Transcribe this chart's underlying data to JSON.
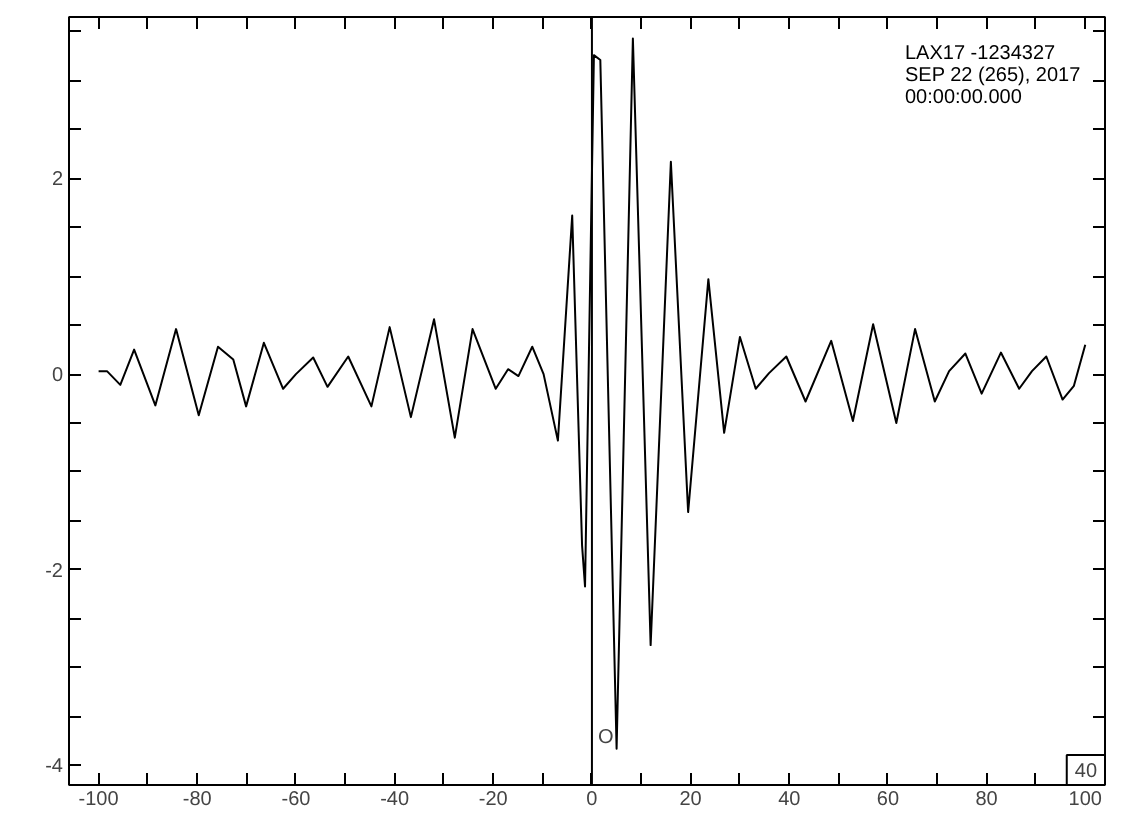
{
  "chart_data": {
    "type": "line",
    "annotations": [
      "LAX17   -1234327",
      "SEP  22 (265), 2017",
      "00:00:00.000",
      "40"
    ],
    "x": [
      -100,
      -98.3,
      -95.6,
      -92.8,
      -88.5,
      -84.3,
      -79.7,
      -75.8,
      -72.7,
      -70.1,
      -66.5,
      -62.6,
      -60.0,
      -56.5,
      -53.6,
      -49.4,
      -44.7,
      -41.0,
      -36.7,
      -32.0,
      -27.8,
      -24.2,
      -19.5,
      -17.0,
      -14.9,
      -12.1,
      -9.8,
      -6.9,
      -4.0,
      -2.0,
      -1.4,
      0.4,
      1.7,
      5.0,
      8.3,
      11.9,
      16.0,
      19.5,
      23.6,
      26.8,
      30.0,
      33.2,
      35.9,
      39.4,
      43.3,
      48.5,
      52.9,
      57.0,
      61.7,
      65.5,
      69.5,
      72.4,
      75.7,
      79.0,
      82.9,
      86.6,
      89.2,
      92.1,
      95.4,
      97.7,
      100
    ],
    "series": [
      {
        "color": "#000000",
        "values": [
          0.03,
          0.03,
          -0.11,
          0.25,
          -0.32,
          0.46,
          -0.42,
          0.28,
          0.15,
          -0.33,
          0.32,
          -0.15,
          0,
          0.17,
          -0.13,
          0.18,
          -0.33,
          0.48,
          -0.44,
          0.56,
          -0.65,
          0.46,
          -0.15,
          0.05,
          -0.02,
          0.28,
          0,
          -0.68,
          1.62,
          -1.75,
          -2.17,
          3.26,
          3.21,
          -3.83,
          3.43,
          -2.77,
          2.17,
          -1.41,
          0.97,
          -0.6,
          0.38,
          -0.15,
          0.01,
          0.18,
          -0.28,
          0.34,
          -0.48,
          0.51,
          -0.5,
          0.46,
          -0.28,
          0.03,
          0.21,
          -0.2,
          0.22,
          -0.15,
          0.03,
          0.18,
          -0.26,
          -0.12,
          0.3
        ]
      }
    ],
    "xlim": [
      -106,
      104
    ],
    "ylim": [
      -4.2,
      3.65
    ],
    "xticks": [
      -100,
      {
        "value": -90,
        "label": null
      },
      -80,
      {
        "value": -70,
        "label": null
      },
      -60,
      {
        "value": -50,
        "label": null
      },
      -40,
      {
        "value": -30,
        "label": null
      },
      -20,
      {
        "value": -10,
        "label": null
      },
      0,
      {
        "value": 10,
        "label": null
      },
      20,
      {
        "value": 30,
        "label": null
      },
      40,
      {
        "value": 50,
        "label": null
      },
      60,
      {
        "value": 70,
        "label": null
      },
      80,
      {
        "value": 90,
        "label": null
      },
      100
    ],
    "yticks": [
      -4,
      {
        "value": -3.5,
        "label": null
      },
      {
        "value": -3,
        "label": null
      },
      {
        "value": -2.5,
        "label": null
      },
      -2,
      {
        "value": -1.5,
        "label": null
      },
      {
        "value": -1,
        "label": null
      },
      {
        "value": -0.5,
        "label": null
      },
      0,
      {
        "value": 0.5,
        "label": null
      },
      {
        "value": 1,
        "label": null
      },
      {
        "value": 1.5,
        "label": null
      },
      2,
      {
        "value": 2.5,
        "label": null
      },
      {
        "value": 3,
        "label": null
      },
      {
        "value": 3.5,
        "label": null
      }
    ],
    "ref_lines": [
      {
        "axis": "x",
        "value": 0,
        "label": "O",
        "color": "#000000"
      }
    ],
    "grid": false,
    "marker": "none",
    "line_style": "solid"
  }
}
